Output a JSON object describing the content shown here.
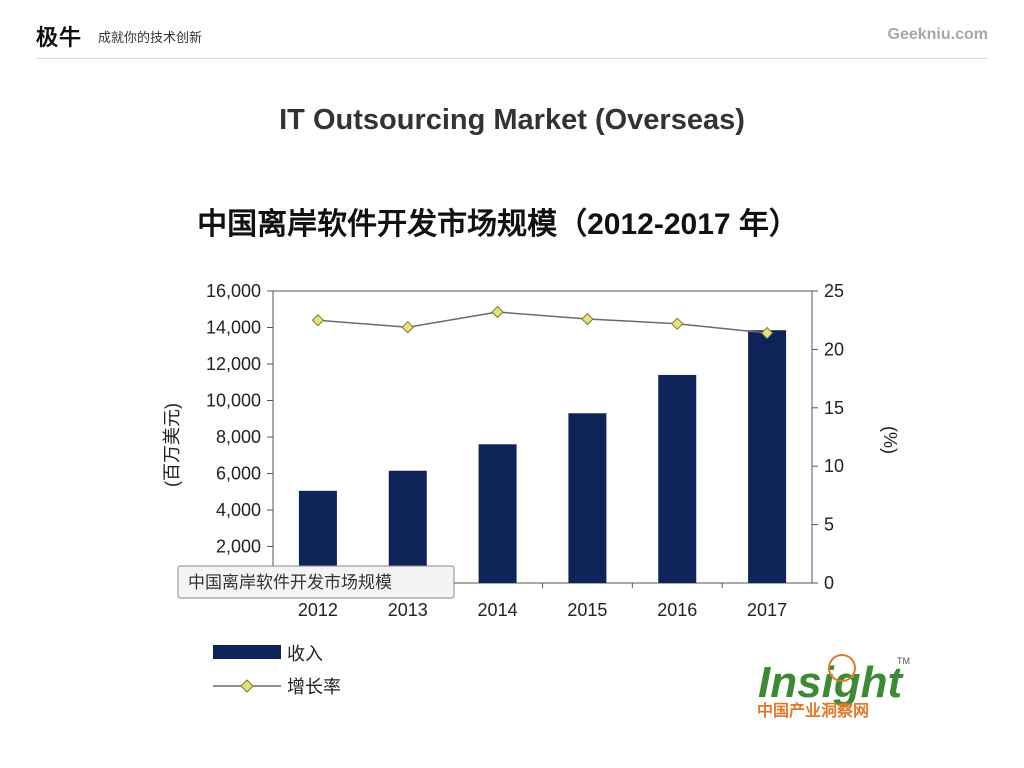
{
  "header": {
    "brand": "极牛",
    "slogan": "成就你的技术创新",
    "site": "Geekniu.com"
  },
  "slide_title": "IT Outsourcing Market (Overseas)",
  "chart_data": {
    "type": "bar",
    "title": "中国离岸软件开发市场规模（2012-2017 年）",
    "categories": [
      "2012",
      "2013",
      "2014",
      "2015",
      "2016",
      "2017"
    ],
    "series": [
      {
        "name": "收入",
        "type": "bar",
        "axis": "left",
        "color": "#0e2357",
        "values": [
          5050,
          6150,
          7600,
          9300,
          11400,
          13850
        ]
      },
      {
        "name": "增长率",
        "type": "line",
        "axis": "right",
        "color": "#6a6a6a",
        "marker_color": "#e8e07a",
        "values": [
          22.5,
          21.9,
          23.2,
          22.6,
          22.2,
          21.4
        ]
      }
    ],
    "ylabel": "(百万美元)",
    "y2label": "(%)",
    "ylim": [
      0,
      16000
    ],
    "y2lim": [
      0,
      25
    ],
    "yticks": [
      "2,000",
      "4,000",
      "6,000",
      "8,000",
      "10,000",
      "12,000",
      "14,000",
      "16,000"
    ],
    "ytick_values": [
      2000,
      4000,
      6000,
      8000,
      10000,
      12000,
      14000,
      16000
    ],
    "y2ticks": [
      "0",
      "5",
      "10",
      "15",
      "20",
      "25"
    ],
    "y2tick_values": [
      0,
      5,
      10,
      15,
      20,
      25
    ],
    "grid": false,
    "legend_position": "bottom-left",
    "tooltip": "中国离岸软件开发市场规模"
  },
  "logo": {
    "main": "Insight",
    "sub": "中国产业洞察网",
    "tm": "TM"
  }
}
